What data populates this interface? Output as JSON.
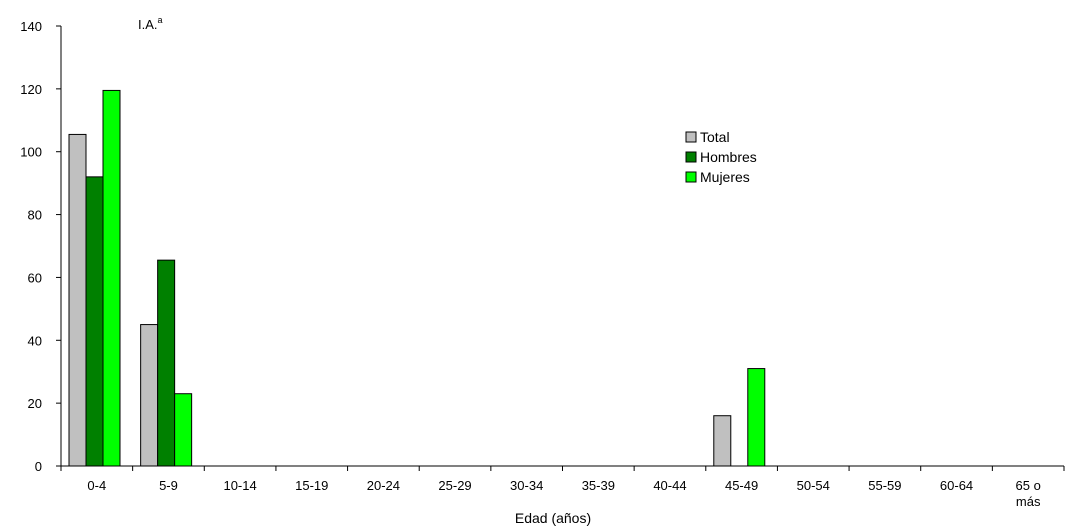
{
  "chart_data": {
    "type": "bar",
    "ylabel": "I.A.",
    "ylabel_superscript": "a",
    "xlabel": "Edad (años)",
    "ylim": [
      0,
      140
    ],
    "yticks": [
      0,
      20,
      40,
      60,
      80,
      100,
      120,
      140
    ],
    "categories": [
      "0-4",
      "5-9",
      "10-14",
      "15-19",
      "20-24",
      "25-29",
      "30-34",
      "35-39",
      "40-44",
      "45-49",
      "50-54",
      "55-59",
      "60-64",
      "65 o\nmás"
    ],
    "series": [
      {
        "name": "Total",
        "color": "#c0c0c0",
        "values": [
          105.5,
          45,
          0,
          0,
          0,
          0,
          0,
          0,
          0,
          16,
          0,
          0,
          0,
          0
        ]
      },
      {
        "name": "Hombres",
        "color": "#008000",
        "values": [
          92,
          65.5,
          0,
          0,
          0,
          0,
          0,
          0,
          0,
          0,
          0,
          0,
          0,
          0
        ]
      },
      {
        "name": "Mujeres",
        "color": "#00ff00",
        "values": [
          119.5,
          23,
          0,
          0,
          0,
          0,
          0,
          0,
          0,
          31,
          0,
          0,
          0,
          0
        ]
      }
    ],
    "legend_position": "right",
    "grid": false
  }
}
